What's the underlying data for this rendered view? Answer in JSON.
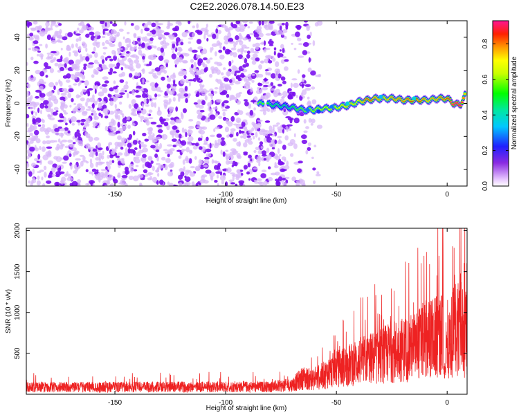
{
  "title": "C2E2.2026.078.14.50.E23",
  "colors": {
    "snr_line": "#ee2222",
    "dot_strong": "#7a10ee",
    "dot_weak": "#d8b8f8",
    "axis": "#000000",
    "background": "#ffffff"
  },
  "chart_data": [
    {
      "type": "heatmap",
      "name": "spectrogram",
      "xlabel": "Height of straight line (km)",
      "ylabel": "Frequency (Hz)",
      "xlim": [
        -190,
        9
      ],
      "ylim": [
        -50,
        50
      ],
      "xticks": [
        -150,
        -100,
        -50,
        0
      ],
      "yticks": [
        -40,
        -20,
        0,
        20,
        40
      ],
      "noise_region": {
        "x_start": -190,
        "x_end": -57
      },
      "colorbar": {
        "label": "Normalized spectral amplitude",
        "range": [
          0.0,
          0.93
        ],
        "ticks": [
          0.0,
          0.2,
          0.4,
          0.6,
          0.8
        ],
        "tick_labels": [
          "0.0",
          "0.2",
          "0.4",
          "0.6",
          "0.8"
        ]
      },
      "signal_track": {
        "x": [
          -85,
          -78,
          -72,
          -68,
          -64,
          -60,
          -56,
          -52,
          -48,
          -44,
          -40,
          -36,
          -32,
          -28,
          -24,
          -20,
          -16,
          -12,
          -8,
          -4,
          0,
          3,
          6,
          8
        ],
        "y": [
          0,
          -1,
          -2,
          -3,
          -4,
          -4,
          -3,
          -3,
          -2,
          -1,
          1,
          2,
          3,
          3,
          3,
          2,
          2,
          2,
          2,
          3,
          3,
          0,
          -1,
          5
        ],
        "amplitude": [
          0.45,
          0.35,
          0.3,
          0.4,
          0.45,
          0.5,
          0.5,
          0.55,
          0.55,
          0.6,
          0.55,
          0.7,
          0.65,
          0.6,
          0.65,
          0.65,
          0.7,
          0.7,
          0.6,
          0.65,
          0.7,
          0.8,
          0.85,
          0.6
        ]
      }
    },
    {
      "type": "line",
      "name": "snr",
      "xlabel": "Height of straight line (km)",
      "ylabel": "SNR (10 * v/v)",
      "xlim": [
        -190,
        9
      ],
      "ylim": [
        0,
        2030
      ],
      "xticks": [
        -150,
        -100,
        -50,
        0
      ],
      "yticks": [
        500,
        1000,
        1500,
        2000
      ],
      "envelope": {
        "x": [
          -190,
          -80,
          -70,
          -65,
          -60,
          -55,
          -50,
          -45,
          -40,
          -35,
          -30,
          -25,
          -20,
          -15,
          -10,
          -5,
          -2,
          0,
          2,
          4,
          6,
          8,
          9
        ],
        "y": [
          150,
          160,
          200,
          350,
          300,
          420,
          550,
          600,
          700,
          750,
          820,
          900,
          950,
          1000,
          1150,
          1200,
          1250,
          900,
          1250,
          1450,
          1550,
          1300,
          1200
        ]
      }
    }
  ]
}
